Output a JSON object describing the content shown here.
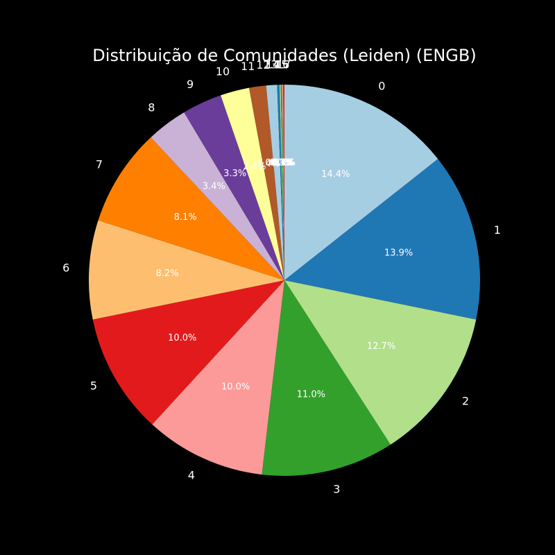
{
  "chart_data": {
    "type": "pie",
    "title": "Distribuição de Comunidades (Leiden) (ENGB)",
    "start_angle_deg": 90,
    "direction": "clockwise",
    "slices": [
      {
        "label": "0",
        "value": 14.4,
        "pct_text": "14.4%",
        "color": "#a6cee3"
      },
      {
        "label": "1",
        "value": 13.9,
        "pct_text": "13.9%",
        "color": "#1f78b4"
      },
      {
        "label": "2",
        "value": 12.7,
        "pct_text": "12.7%",
        "color": "#b2df8a"
      },
      {
        "label": "3",
        "value": 11.0,
        "pct_text": "11.0%",
        "color": "#33a02c"
      },
      {
        "label": "4",
        "value": 10.0,
        "pct_text": "10.0%",
        "color": "#fb9a99"
      },
      {
        "label": "5",
        "value": 10.0,
        "pct_text": "10.0%",
        "color": "#e31a1c"
      },
      {
        "label": "6",
        "value": 8.2,
        "pct_text": "8.2%",
        "color": "#fdbf6f"
      },
      {
        "label": "7",
        "value": 8.1,
        "pct_text": "8.1%",
        "color": "#ff7f00"
      },
      {
        "label": "8",
        "value": 3.4,
        "pct_text": "3.4%",
        "color": "#cab2d6"
      },
      {
        "label": "9",
        "value": 3.3,
        "pct_text": "3.3%",
        "color": "#6a3d9a"
      },
      {
        "label": "10",
        "value": 2.4,
        "pct_text": "2.4%",
        "color": "#ffff99"
      },
      {
        "label": "11",
        "value": 1.4,
        "pct_text": "1.4%",
        "color": "#b15928"
      },
      {
        "label": "12",
        "value": 0.9,
        "pct_text": "0.9%",
        "color": "#a6cee3"
      },
      {
        "label": "13",
        "value": 0.2,
        "pct_text": "0.2%",
        "color": "#1f78b4"
      },
      {
        "label": "14",
        "value": 0.1,
        "pct_text": "0.1%",
        "color": "#b2df8a"
      },
      {
        "label": "15",
        "value": 0.1,
        "pct_text": "0.1%",
        "color": "#33a02c"
      },
      {
        "label": "16",
        "value": 0.1,
        "pct_text": "0.1%",
        "color": "#fb9a99"
      },
      {
        "label": "17",
        "value": 0.1,
        "pct_text": "0.1%",
        "color": "#e31a1c"
      }
    ]
  }
}
